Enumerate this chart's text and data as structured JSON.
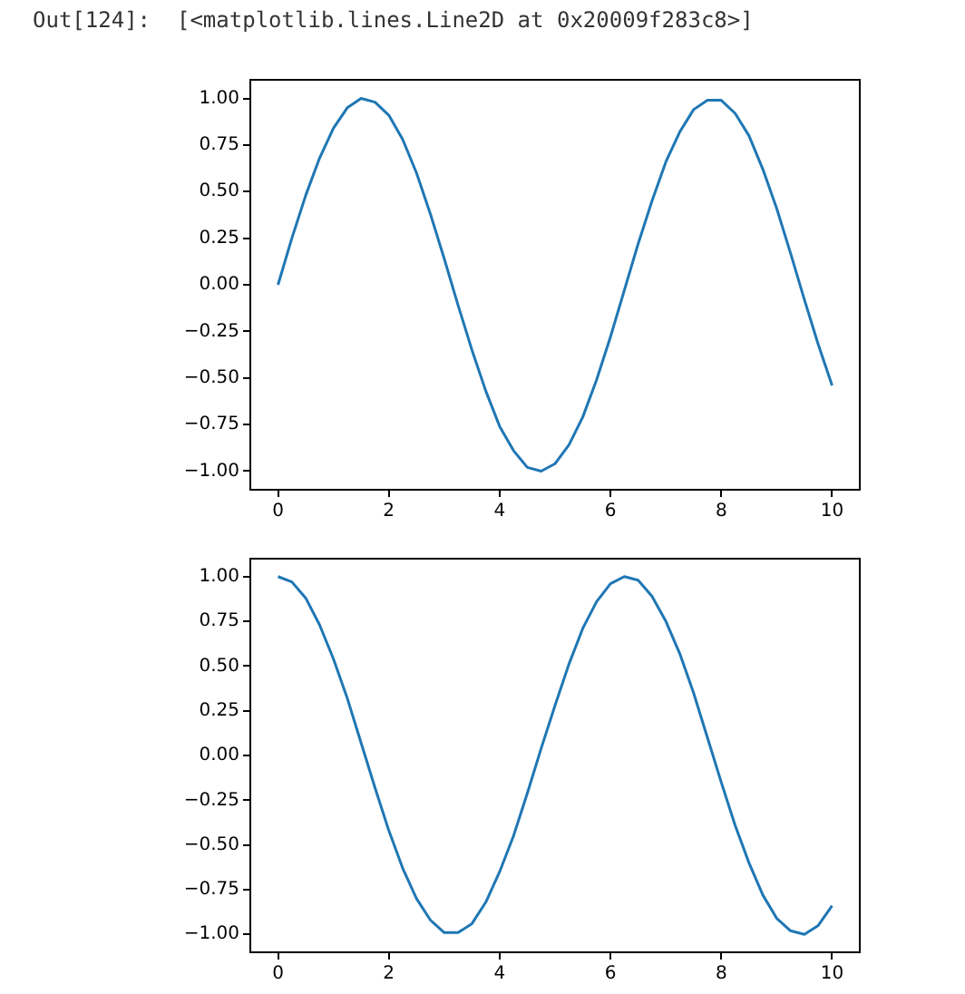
{
  "chart_data": [
    {
      "type": "line",
      "annotations": [
        "Out[124]:  [<matplotlib.lines.Line2D at 0x20009f283c8>]"
      ],
      "x": [
        0,
        0.25,
        0.5,
        0.75,
        1,
        1.25,
        1.5,
        1.75,
        2,
        2.25,
        2.5,
        2.75,
        3,
        3.25,
        3.5,
        3.75,
        4,
        4.25,
        4.5,
        4.75,
        5,
        5.25,
        5.5,
        5.75,
        6,
        6.25,
        6.5,
        6.75,
        7,
        7.25,
        7.5,
        7.75,
        8,
        8.25,
        8.5,
        8.75,
        9,
        9.25,
        9.5,
        9.75,
        10
      ],
      "series": [
        {
          "color": "#1f77b4",
          "values": [
            0,
            0.25,
            0.48,
            0.68,
            0.84,
            0.95,
            1.0,
            0.98,
            0.91,
            0.78,
            0.6,
            0.38,
            0.14,
            -0.11,
            -0.35,
            -0.57,
            -0.76,
            -0.89,
            -0.98,
            -1.0,
            -0.96,
            -0.86,
            -0.71,
            -0.51,
            -0.28,
            -0.03,
            0.22,
            0.45,
            0.66,
            0.82,
            0.94,
            0.99,
            0.99,
            0.92,
            0.8,
            0.62,
            0.41,
            0.17,
            -0.08,
            -0.32,
            -0.54
          ]
        }
      ],
      "xlim": [
        -0.5,
        10.5
      ],
      "xticks": [
        0,
        2,
        4,
        6,
        8,
        10
      ],
      "ylim": [
        -1.1,
        1.1
      ],
      "yticks": [
        {
          "value": -1,
          "label": "−1.00"
        },
        {
          "value": -0.75,
          "label": "−0.75"
        },
        {
          "value": -0.5,
          "label": "−0.50"
        },
        {
          "value": -0.25,
          "label": "−0.25"
        },
        {
          "value": 0,
          "label": "0.00"
        },
        {
          "value": 0.25,
          "label": "0.25"
        },
        {
          "value": 0.5,
          "label": "0.50"
        },
        {
          "value": 0.75,
          "label": "0.75"
        },
        {
          "value": 1,
          "label": "1.00"
        }
      ],
      "grid": false,
      "legend": false,
      "marker": "none",
      "line_style": "solid"
    },
    {
      "type": "line",
      "x": [
        0,
        0.25,
        0.5,
        0.75,
        1,
        1.25,
        1.5,
        1.75,
        2,
        2.25,
        2.5,
        2.75,
        3,
        3.25,
        3.5,
        3.75,
        4,
        4.25,
        4.5,
        4.75,
        5,
        5.25,
        5.5,
        5.75,
        6,
        6.25,
        6.5,
        6.75,
        7,
        7.25,
        7.5,
        7.75,
        8,
        8.25,
        8.5,
        8.75,
        9,
        9.25,
        9.5,
        9.75,
        10
      ],
      "series": [
        {
          "color": "#1f77b4",
          "values": [
            1,
            0.97,
            0.88,
            0.73,
            0.54,
            0.32,
            0.07,
            -0.18,
            -0.42,
            -0.63,
            -0.8,
            -0.92,
            -0.99,
            -0.99,
            -0.94,
            -0.82,
            -0.65,
            -0.45,
            -0.21,
            0.04,
            0.28,
            0.51,
            0.71,
            0.86,
            0.96,
            1.0,
            0.98,
            0.89,
            0.75,
            0.57,
            0.35,
            0.1,
            -0.15,
            -0.39,
            -0.6,
            -0.78,
            -0.91,
            -0.98,
            -1.0,
            -0.95,
            -0.84
          ]
        }
      ],
      "xlim": [
        -0.5,
        10.5
      ],
      "xticks": [
        0,
        2,
        4,
        6,
        8,
        10
      ],
      "ylim": [
        -1.1,
        1.1
      ],
      "yticks": [
        {
          "value": -1,
          "label": "−1.00"
        },
        {
          "value": -0.75,
          "label": "−0.75"
        },
        {
          "value": -0.5,
          "label": "−0.50"
        },
        {
          "value": -0.25,
          "label": "−0.25"
        },
        {
          "value": 0,
          "label": "0.00"
        },
        {
          "value": 0.25,
          "label": "0.25"
        },
        {
          "value": 0.5,
          "label": "0.50"
        },
        {
          "value": 0.75,
          "label": "0.75"
        },
        {
          "value": 1,
          "label": "1.00"
        }
      ],
      "grid": false,
      "legend": false,
      "marker": "none",
      "line_style": "solid"
    }
  ]
}
